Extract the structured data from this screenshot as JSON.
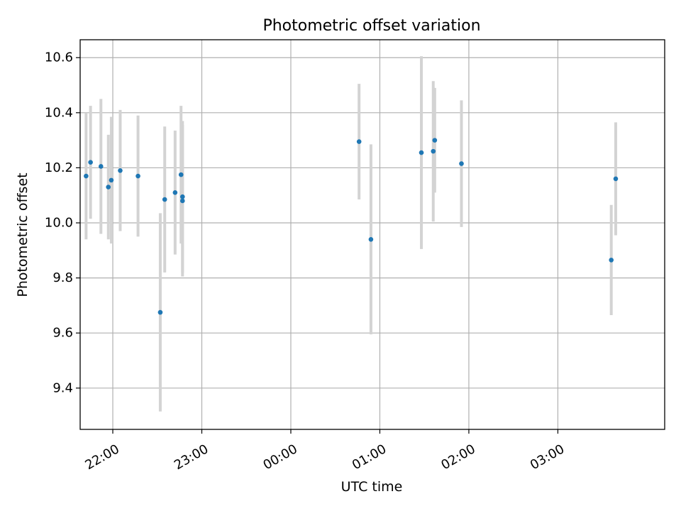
{
  "chart_data": {
    "type": "scatter",
    "title": "Photometric offset variation",
    "xlabel": "UTC time",
    "ylabel": "Photometric offset",
    "x_unit": "time (HH:MM, night spanning midnight)",
    "xlim": [
      "21:38",
      "04:12"
    ],
    "ylim": [
      9.25,
      10.665
    ],
    "x_ticks": [
      "22:00",
      "23:00",
      "00:00",
      "01:00",
      "02:00",
      "03:00"
    ],
    "y_ticks": [
      "9.4",
      "9.6",
      "9.8",
      "10.0",
      "10.2",
      "10.4",
      "10.6"
    ],
    "grid": true,
    "series": [
      {
        "color": "#1f77b4",
        "errorbar_color": "#d3d3d3",
        "points": [
          {
            "x": "21:42",
            "y": 10.17,
            "err": 0.23
          },
          {
            "x": "21:45",
            "y": 10.22,
            "err": 0.205
          },
          {
            "x": "21:52",
            "y": 10.205,
            "err": 0.245
          },
          {
            "x": "21:57",
            "y": 10.13,
            "err": 0.19
          },
          {
            "x": "21:59",
            "y": 10.155,
            "err": 0.23
          },
          {
            "x": "22:05",
            "y": 10.19,
            "err": 0.22
          },
          {
            "x": "22:17",
            "y": 10.17,
            "err": 0.22
          },
          {
            "x": "22:32",
            "y": 9.675,
            "err": 0.36
          },
          {
            "x": "22:35",
            "y": 10.085,
            "err": 0.265
          },
          {
            "x": "22:42",
            "y": 10.11,
            "err": 0.225
          },
          {
            "x": "22:46",
            "y": 10.175,
            "err": 0.25
          },
          {
            "x": "22:47",
            "y": 10.08,
            "err": 0.275
          },
          {
            "x": "22:47",
            "y": 10.095,
            "err": 0.275
          },
          {
            "x": "00:46",
            "y": 10.295,
            "err": 0.21
          },
          {
            "x": "00:54",
            "y": 9.94,
            "err": 0.345
          },
          {
            "x": "01:28",
            "y": 10.255,
            "err": 0.35
          },
          {
            "x": "01:36",
            "y": 10.26,
            "err": 0.255
          },
          {
            "x": "01:37",
            "y": 10.3,
            "err": 0.19
          },
          {
            "x": "01:55",
            "y": 10.215,
            "err": 0.23
          },
          {
            "x": "03:36",
            "y": 9.865,
            "err": 0.2
          },
          {
            "x": "03:39",
            "y": 10.16,
            "err": 0.205
          }
        ]
      }
    ]
  }
}
